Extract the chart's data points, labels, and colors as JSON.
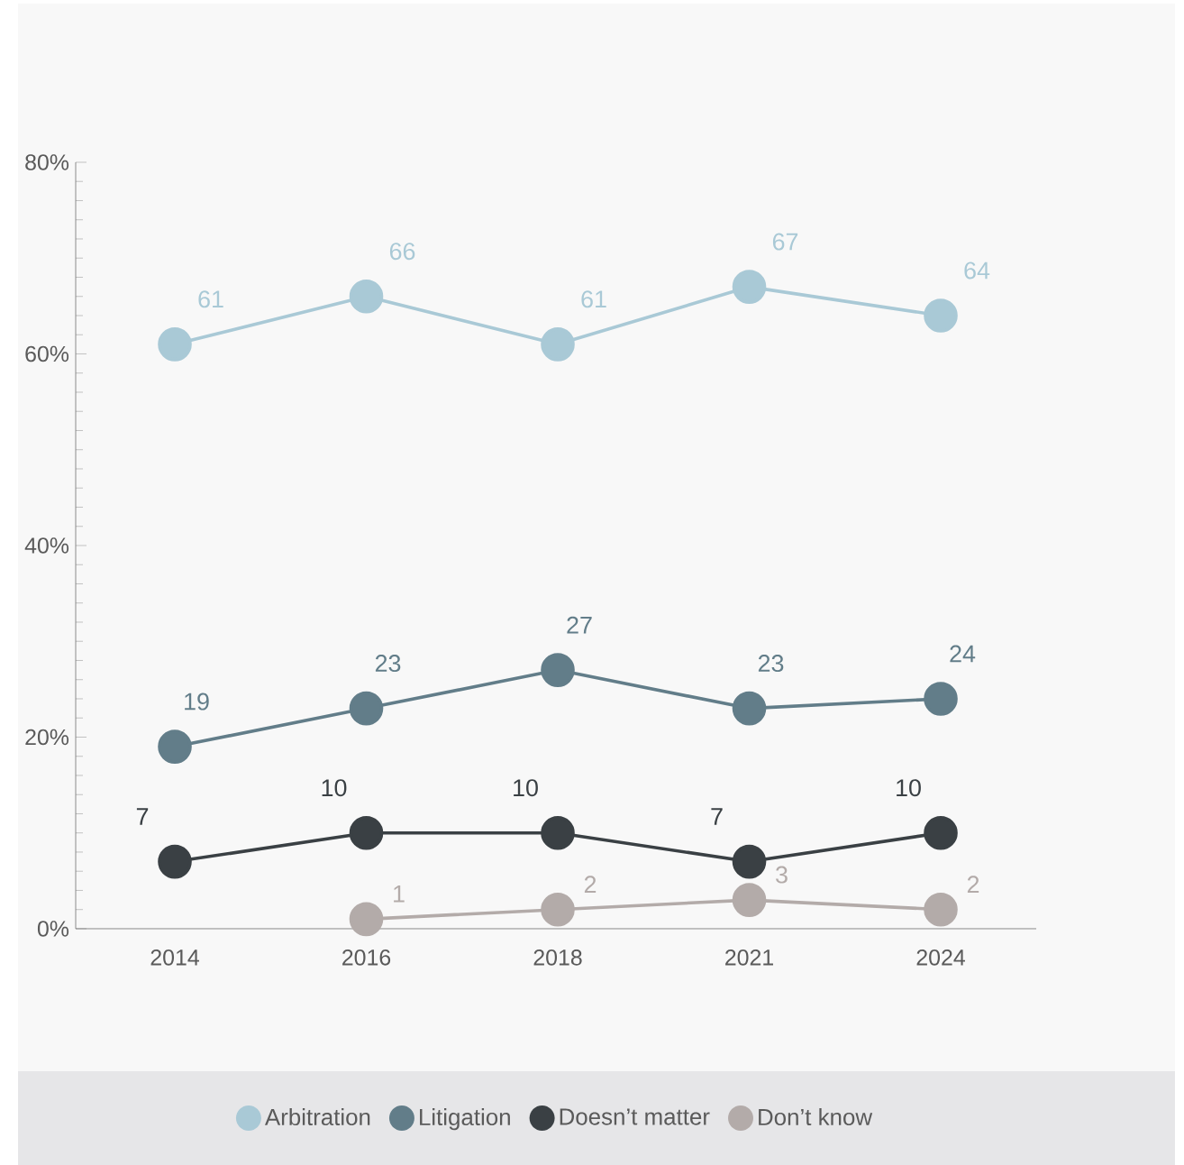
{
  "chart_data": {
    "type": "line",
    "categories": [
      "2014",
      "2016",
      "2018",
      "2021",
      "2024"
    ],
    "series": [
      {
        "name": "Arbitration",
        "color": "#a9c9d6",
        "values": [
          61,
          66,
          61,
          67,
          64
        ]
      },
      {
        "name": "Litigation",
        "color": "#627d89",
        "values": [
          19,
          23,
          27,
          23,
          24
        ]
      },
      {
        "name": "Doesn’t matter",
        "color": "#3a4044",
        "values": [
          7,
          10,
          10,
          7,
          10
        ]
      },
      {
        "name": "Don’t know",
        "color": "#b3aba9",
        "values": [
          null,
          1,
          2,
          3,
          2
        ]
      }
    ],
    "ylim": [
      0,
      80
    ],
    "yticks": [
      {
        "value": 0,
        "label": "0%"
      },
      {
        "value": 20,
        "label": "20%"
      },
      {
        "value": 40,
        "label": "40%"
      },
      {
        "value": 60,
        "label": "60%"
      },
      {
        "value": 80,
        "label": "80%"
      }
    ],
    "data_labels": true,
    "marker": "circle",
    "line_style": "solid",
    "legend": "bottom",
    "grid": false
  }
}
